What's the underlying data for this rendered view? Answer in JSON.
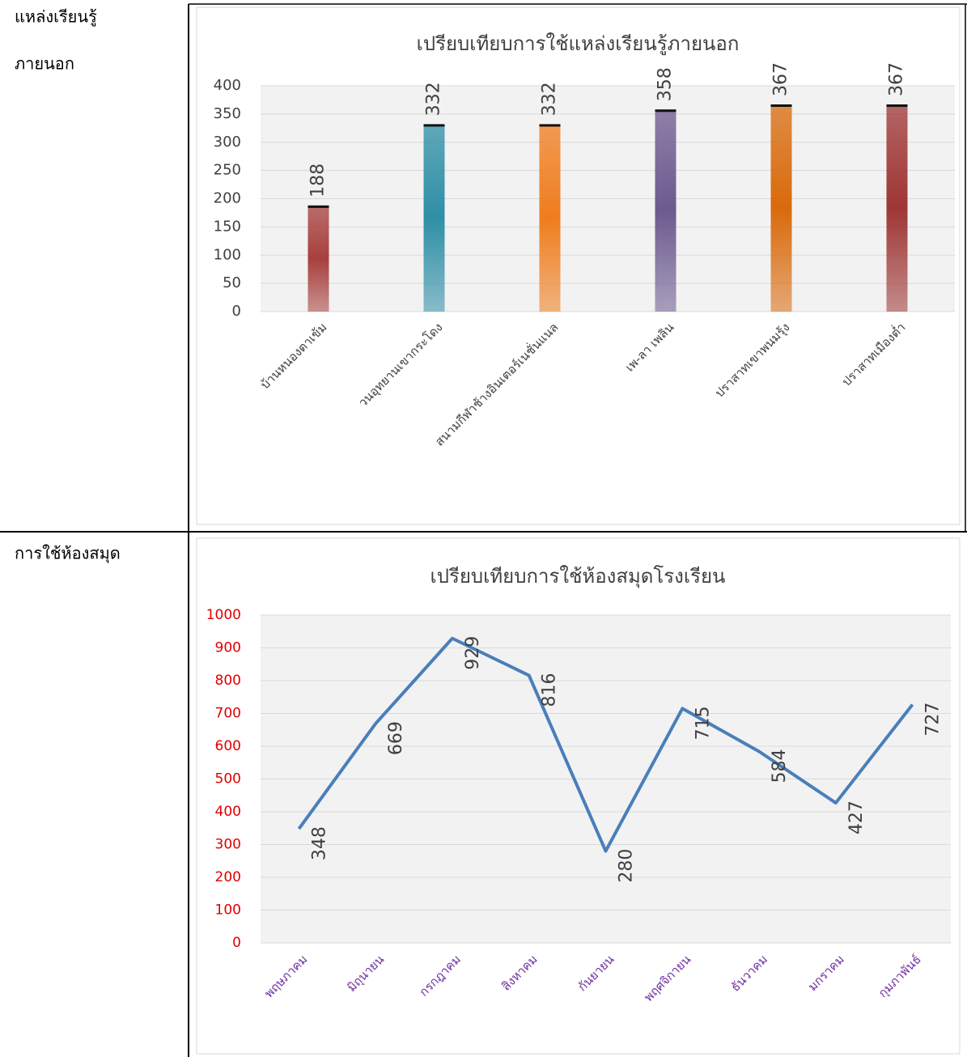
{
  "table": {
    "rows": [
      {
        "label": [
          "แหล่งเรียนรู้",
          "ภายนอก"
        ]
      },
      {
        "label": [
          "การใช้ห้องสมุด"
        ]
      }
    ]
  },
  "chart_data": [
    {
      "type": "bar",
      "title": "เปรียบเทียบการใช้แหล่งเรียนรู้ภายนอก",
      "categories": [
        "บ้านหนองตาเข้ม",
        "วนอุทยานเขากระโดง",
        "สนามกีฬาช้างอินเตอร์เนชั่นแนล",
        "เพ-ลา เพลิน",
        "ปราสาทเขาพนมรุ้ง",
        "ปราสาทเมืองต่ำ"
      ],
      "values": [
        188,
        332,
        332,
        358,
        367,
        367
      ],
      "colors": [
        "#a8403e",
        "#2f8fa6",
        "#ef7d1e",
        "#6c5a8f",
        "#d96a0c",
        "#9e3634"
      ],
      "ylim": [
        0,
        400
      ],
      "yticks": [
        0,
        50,
        100,
        150,
        200,
        250,
        300,
        350,
        400
      ],
      "grid": true
    },
    {
      "type": "line",
      "title": "เปรียบเทียบการใช้ห้องสมุดโรงเรียน",
      "categories": [
        "พฤษภาคม",
        "มิถุนายน",
        "กรกฎาคม",
        "สิงหาคม",
        "กันยายน",
        "พฤศจิกายน",
        "ธันวาคม",
        "มกราคม",
        "กุมภาพันธ์"
      ],
      "values": [
        348,
        669,
        929,
        816,
        280,
        715,
        584,
        427,
        727
      ],
      "color": "#4a7ebb",
      "tick_color": "#e00000",
      "category_color": "#7030a0",
      "ylim": [
        0,
        1000
      ],
      "yticks": [
        0,
        100,
        200,
        300,
        400,
        500,
        600,
        700,
        800,
        900,
        1000
      ],
      "grid": true
    }
  ]
}
